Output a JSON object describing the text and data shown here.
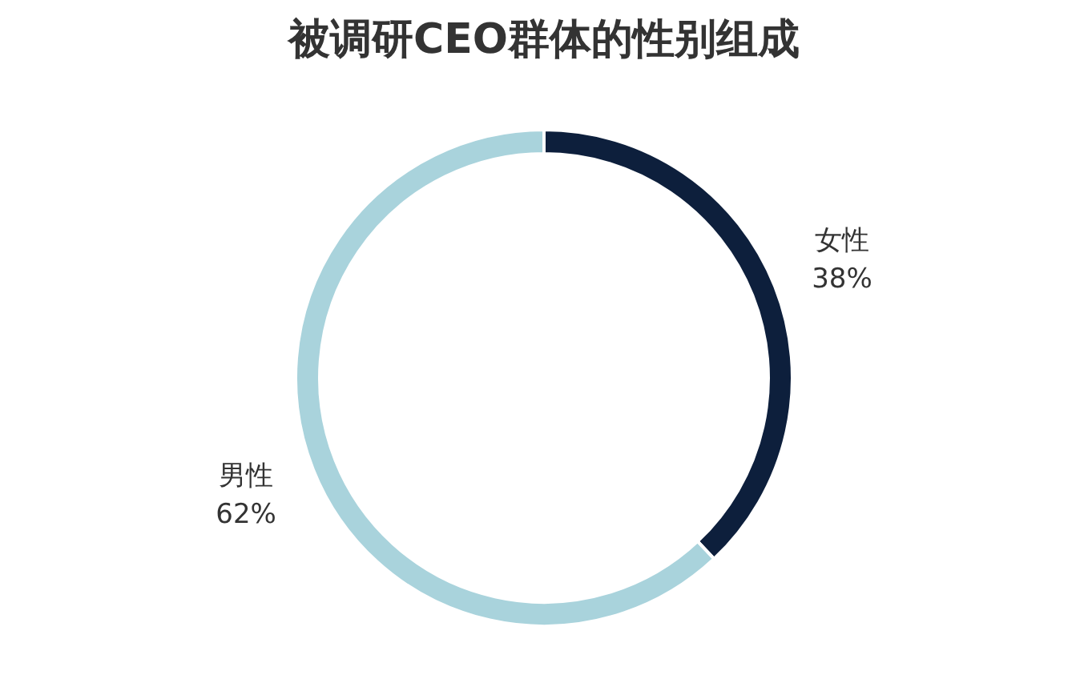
{
  "chart_data": {
    "type": "donut",
    "title": "被调研CEO群体的性别组成",
    "categories": [
      "女性",
      "男性"
    ],
    "values": [
      38,
      62
    ],
    "value_labels": [
      "38%",
      "62%"
    ],
    "colors": [
      "#0d1f3c",
      "#a9d3dc"
    ],
    "legend": false
  }
}
